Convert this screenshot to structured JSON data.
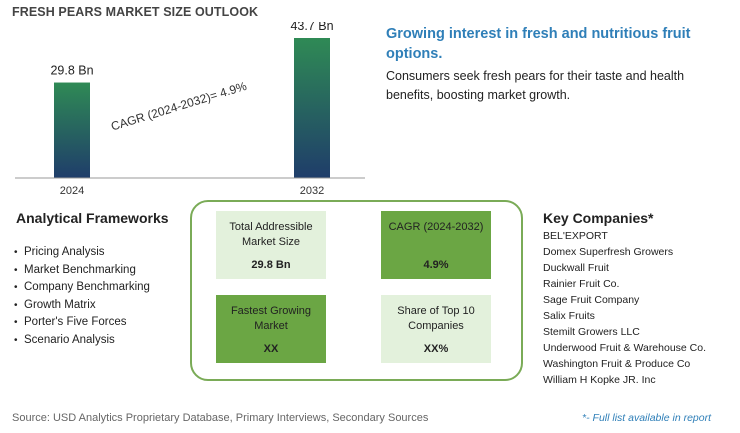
{
  "title": "FRESH PEARS MARKET SIZE OUTLOOK",
  "chart_data": {
    "type": "bar",
    "categories": [
      "2024",
      "2032"
    ],
    "values": [
      29.8,
      43.7
    ],
    "data_labels": [
      "29.8 Bn",
      "43.7 Bn"
    ],
    "annotation": "CAGR (2024-2032)=  4.9%",
    "bar_color_top": "#2f8a55",
    "bar_color_bottom": "#1f3d6a"
  },
  "headline": "Growing interest in fresh and nutritious fruit options.",
  "description": "Consumers seek fresh pears for their taste and health benefits, boosting market growth.",
  "frameworks": {
    "title": "Analytical Frameworks",
    "items": [
      "Pricing Analysis",
      "Market Benchmarking",
      "Company Benchmarking",
      "Growth Matrix",
      "Porter's Five Forces",
      "Scenario Analysis"
    ]
  },
  "metrics": {
    "tam": {
      "label": "Total Addressible Market Size",
      "value": "29.8 Bn"
    },
    "cagr": {
      "label": "CAGR (2024-2032)",
      "value": "4.9%"
    },
    "fastest": {
      "label": "Fastest Growing Market",
      "value": "XX"
    },
    "share": {
      "label": "Share of Top 10 Companies",
      "value": "XX%"
    }
  },
  "companies": {
    "title": "Key Companies*",
    "items": [
      "BEL'EXPORT",
      "Domex Superfresh Growers",
      "Duckwall Fruit",
      "Rainier Fruit Co.",
      "Sage Fruit Company",
      "Salix Fruits",
      "Stemilt Growers LLC",
      "Underwood Fruit & Warehouse Co.",
      "Washington Fruit & Produce Co",
      "William H Kopke JR. Inc"
    ]
  },
  "source": "Source: USD Analytics Proprietary Database, Primary Interviews, Secondary Sources",
  "full_list_note": "*- Full list available in report"
}
